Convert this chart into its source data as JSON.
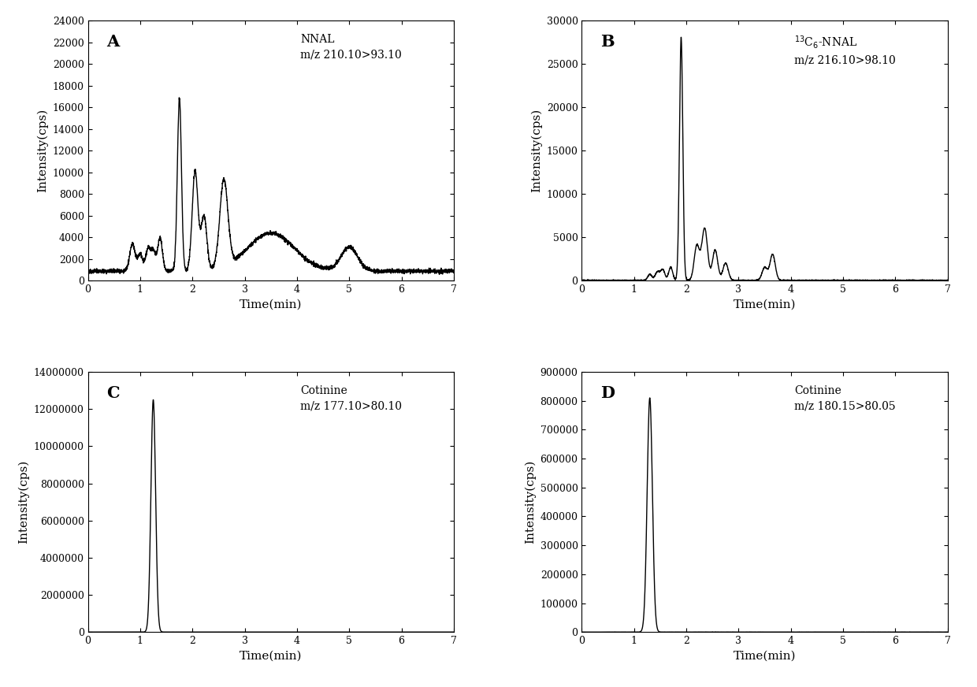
{
  "panels": [
    {
      "label": "A",
      "title_line1": "NNAL",
      "title_line2": "m/z 210.10>93.10",
      "ylabel": "Intensity(cps)",
      "xlabel": "Time(min)",
      "xlim": [
        0,
        7
      ],
      "ylim": [
        0,
        24000
      ],
      "yticks": [
        0,
        2000,
        4000,
        6000,
        8000,
        10000,
        12000,
        14000,
        16000,
        18000,
        20000,
        22000,
        24000
      ],
      "xticks": [
        0,
        1,
        2,
        3,
        4,
        5,
        6,
        7
      ],
      "profile": "A"
    },
    {
      "label": "B",
      "title_line1": "$^{13}$C$_6$-NNAL",
      "title_line2": "m/z 216.10>98.10",
      "ylabel": "Intensity(cps)",
      "xlabel": "Time(min)",
      "xlim": [
        0,
        7
      ],
      "ylim": [
        0,
        30000
      ],
      "yticks": [
        0,
        5000,
        10000,
        15000,
        20000,
        25000,
        30000
      ],
      "xticks": [
        0,
        1,
        2,
        3,
        4,
        5,
        6,
        7
      ],
      "profile": "B"
    },
    {
      "label": "C",
      "title_line1": "Cotinine",
      "title_line2": "m/z 177.10>80.10",
      "ylabel": "Intensity(cps)",
      "xlabel": "Time(min)",
      "xlim": [
        0,
        7
      ],
      "ylim": [
        0,
        14000000
      ],
      "yticks": [
        0,
        2000000,
        4000000,
        6000000,
        8000000,
        10000000,
        12000000,
        14000000
      ],
      "xticks": [
        0,
        1,
        2,
        3,
        4,
        5,
        6,
        7
      ],
      "profile": "C"
    },
    {
      "label": "D",
      "title_line1": "Cotinine",
      "title_line2": "m/z 180.15>80.05",
      "ylabel": "Intensity(cps)",
      "xlabel": "Time(min)",
      "xlim": [
        0,
        7
      ],
      "ylim": [
        0,
        900000
      ],
      "yticks": [
        0,
        100000,
        200000,
        300000,
        400000,
        500000,
        600000,
        700000,
        800000,
        900000
      ],
      "xticks": [
        0,
        1,
        2,
        3,
        4,
        5,
        6,
        7
      ],
      "profile": "D"
    }
  ],
  "background_color": "#ffffff",
  "line_color": "#000000",
  "line_width": 1.0
}
